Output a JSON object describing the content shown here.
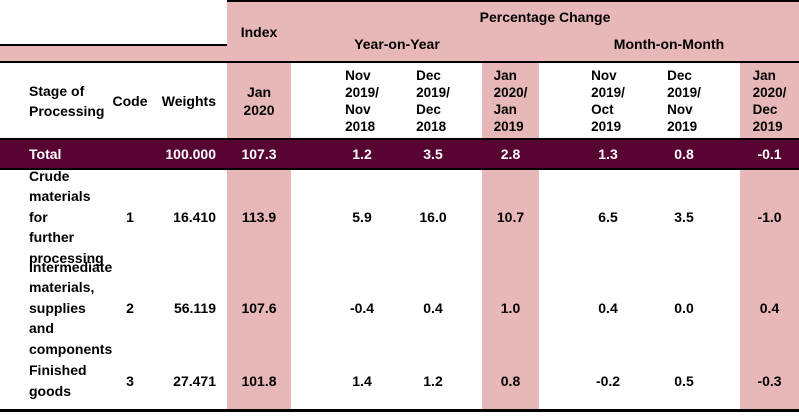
{
  "header": {
    "stage": [
      "Stage of",
      "Processing"
    ],
    "code": "Code",
    "weights": "Weights",
    "index_title": "Index",
    "index_period": [
      "Jan",
      "2020"
    ],
    "percentage_change": "Percentage Change",
    "year_on_year": "Year-on-Year",
    "month_on_month": "Month-on-Month",
    "periods": [
      [
        "Nov",
        "2019/",
        "Nov",
        "2018"
      ],
      [
        "Dec",
        "2019/",
        "Dec",
        "2018"
      ],
      [
        "Jan",
        "2020/",
        "Jan",
        "2019"
      ],
      [
        "Nov",
        "2019/",
        "Oct",
        "2019"
      ],
      [
        "Dec",
        "2019/",
        "Nov",
        "2019"
      ],
      [
        "Jan",
        "2020/",
        "Dec",
        "2019"
      ]
    ]
  },
  "rows": [
    {
      "stage_lines": [
        "Total"
      ],
      "code": "",
      "weights": "100.000",
      "index": "107.3",
      "values": [
        "1.2",
        "3.5",
        "2.8",
        "1.3",
        "0.8",
        "-0.1"
      ]
    },
    {
      "stage_lines": [
        "Crude",
        "materials for",
        "further",
        "processing"
      ],
      "code": "1",
      "weights": "16.410",
      "index": "113.9",
      "values": [
        "5.9",
        "16.0",
        "10.7",
        "6.5",
        "3.5",
        "-1.0"
      ]
    },
    {
      "stage_lines": [
        "Intermediate",
        "materials,",
        "supplies and",
        "components"
      ],
      "code": "2",
      "weights": "56.119",
      "index": "107.6",
      "values": [
        "-0.4",
        "0.4",
        "1.0",
        "0.4",
        "0.0",
        "0.4"
      ]
    },
    {
      "stage_lines": [
        "Finished",
        "goods"
      ],
      "code": "3",
      "weights": "27.471",
      "index": "101.8",
      "values": [
        "1.4",
        "1.2",
        "0.8",
        "-0.2",
        "0.5",
        "-0.3"
      ]
    }
  ],
  "colors": {
    "pink": "#e7b8b7",
    "maroon": "#580433",
    "line": "#000000"
  }
}
